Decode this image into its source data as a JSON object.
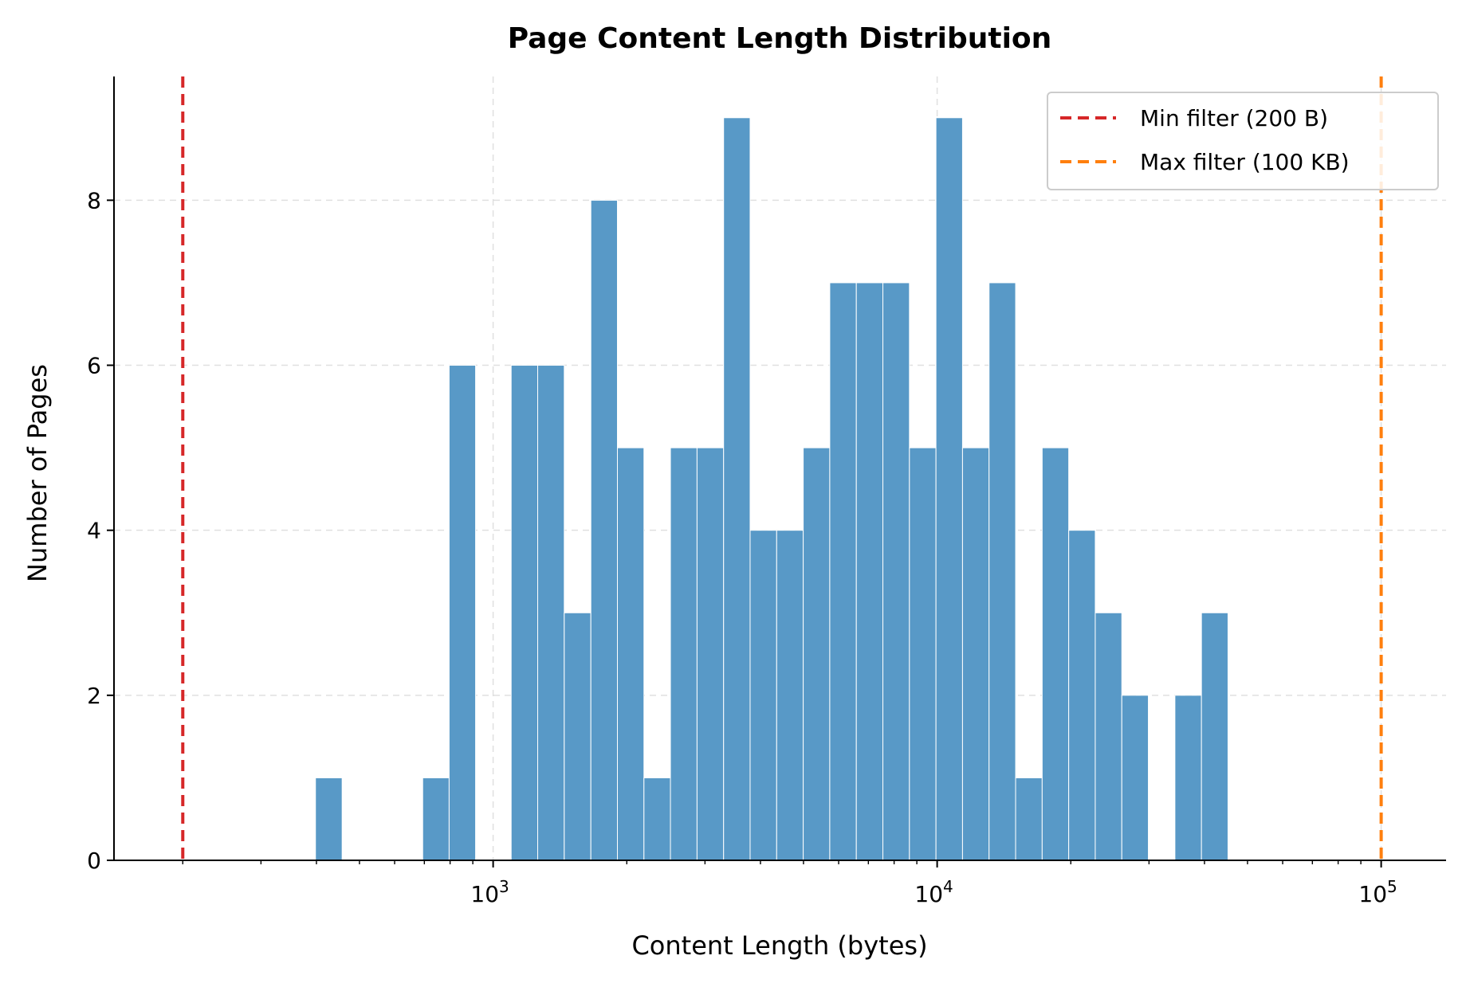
{
  "chart_data": {
    "type": "bar",
    "title": "Page Content Length Distribution",
    "xlabel": "Content Length (bytes)",
    "ylabel": "Number of Pages",
    "x_scale": "log",
    "xlim": [
      140,
      140000
    ],
    "ylim": [
      0,
      9.5
    ],
    "y_ticks": [
      0,
      2,
      4,
      6,
      8
    ],
    "x_ticks": [
      {
        "value": 1000,
        "base": "10",
        "exp": "3"
      },
      {
        "value": 10000,
        "base": "10",
        "exp": "4"
      },
      {
        "value": 100000,
        "base": "10",
        "exp": "5"
      }
    ],
    "grid": true,
    "legend_position": "top-right",
    "bar_color": "#5899c7",
    "bins": [
      {
        "from": 398,
        "to": 457,
        "count": 1
      },
      {
        "from": 694,
        "to": 796,
        "count": 1
      },
      {
        "from": 796,
        "to": 913,
        "count": 6
      },
      {
        "from": 1098,
        "to": 1260,
        "count": 6
      },
      {
        "from": 1260,
        "to": 1446,
        "count": 6
      },
      {
        "from": 1446,
        "to": 1660,
        "count": 3
      },
      {
        "from": 1660,
        "to": 1905,
        "count": 8
      },
      {
        "from": 1905,
        "to": 2186,
        "count": 5
      },
      {
        "from": 2186,
        "to": 2508,
        "count": 1
      },
      {
        "from": 2508,
        "to": 2879,
        "count": 5
      },
      {
        "from": 2879,
        "to": 3304,
        "count": 5
      },
      {
        "from": 3304,
        "to": 3791,
        "count": 9
      },
      {
        "from": 3791,
        "to": 4351,
        "count": 4
      },
      {
        "from": 4351,
        "to": 4993,
        "count": 4
      },
      {
        "from": 4993,
        "to": 5730,
        "count": 5
      },
      {
        "from": 5730,
        "to": 6576,
        "count": 7
      },
      {
        "from": 6576,
        "to": 7547,
        "count": 7
      },
      {
        "from": 7547,
        "to": 8661,
        "count": 7
      },
      {
        "from": 8661,
        "to": 9939,
        "count": 5
      },
      {
        "from": 9939,
        "to": 11406,
        "count": 9
      },
      {
        "from": 11406,
        "to": 13090,
        "count": 5
      },
      {
        "from": 13090,
        "to": 15022,
        "count": 7
      },
      {
        "from": 15022,
        "to": 17239,
        "count": 1
      },
      {
        "from": 17239,
        "to": 19783,
        "count": 5
      },
      {
        "from": 19783,
        "to": 22703,
        "count": 4
      },
      {
        "from": 22703,
        "to": 26054,
        "count": 3
      },
      {
        "from": 26054,
        "to": 29900,
        "count": 2
      },
      {
        "from": 34313,
        "to": 39378,
        "count": 2
      },
      {
        "from": 39378,
        "to": 45190,
        "count": 3
      }
    ],
    "reference_lines": [
      {
        "name": "Min filter (200 B)",
        "x": 200,
        "color": "#d62728"
      },
      {
        "name": "Max filter (100 KB)",
        "x": 100000,
        "color": "#ff7f0e"
      }
    ]
  }
}
